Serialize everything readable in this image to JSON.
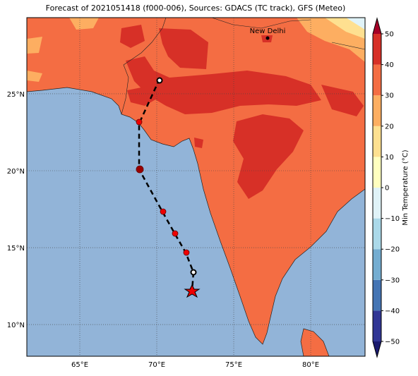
{
  "map": {
    "title": "Forecast of 2021051418 (f000-006), Sources: GDACS (TC track), GFS (Meteo)",
    "lonlim": [
      61.56,
      83.53
    ],
    "latlim": [
      7.94,
      29.95
    ],
    "lonticks": [
      {
        "value": 65,
        "label": "65°E"
      },
      {
        "value": 70,
        "label": "70°E"
      },
      {
        "value": 75,
        "label": "75°E"
      },
      {
        "value": 80,
        "label": "80°E"
      }
    ],
    "latticks": [
      {
        "value": 10,
        "label": "10°N"
      },
      {
        "value": 15,
        "label": "15°N"
      },
      {
        "value": 20,
        "label": "20°N"
      },
      {
        "value": 25,
        "label": "25°N"
      }
    ],
    "city": "New Delhi"
  },
  "colorbar": {
    "label": "Min Temperature (°C)",
    "ticks": [
      {
        "value": -50,
        "label": "−50"
      },
      {
        "value": -40,
        "label": "−40"
      },
      {
        "value": -30,
        "label": "−30"
      },
      {
        "value": -20,
        "label": "−20"
      },
      {
        "value": -10,
        "label": "−10"
      },
      0,
      10,
      20,
      30,
      40,
      50
    ],
    "colors": [
      "#313695",
      "#4575b4",
      "#74add1",
      "#abd9e9",
      "#e0f3f8",
      "#ffffbf",
      "#fee090",
      "#fdae61",
      "#f46d43",
      "#d73027"
    ],
    "under_color": "#1a1a6e",
    "over_color": "#a50026"
  }
}
